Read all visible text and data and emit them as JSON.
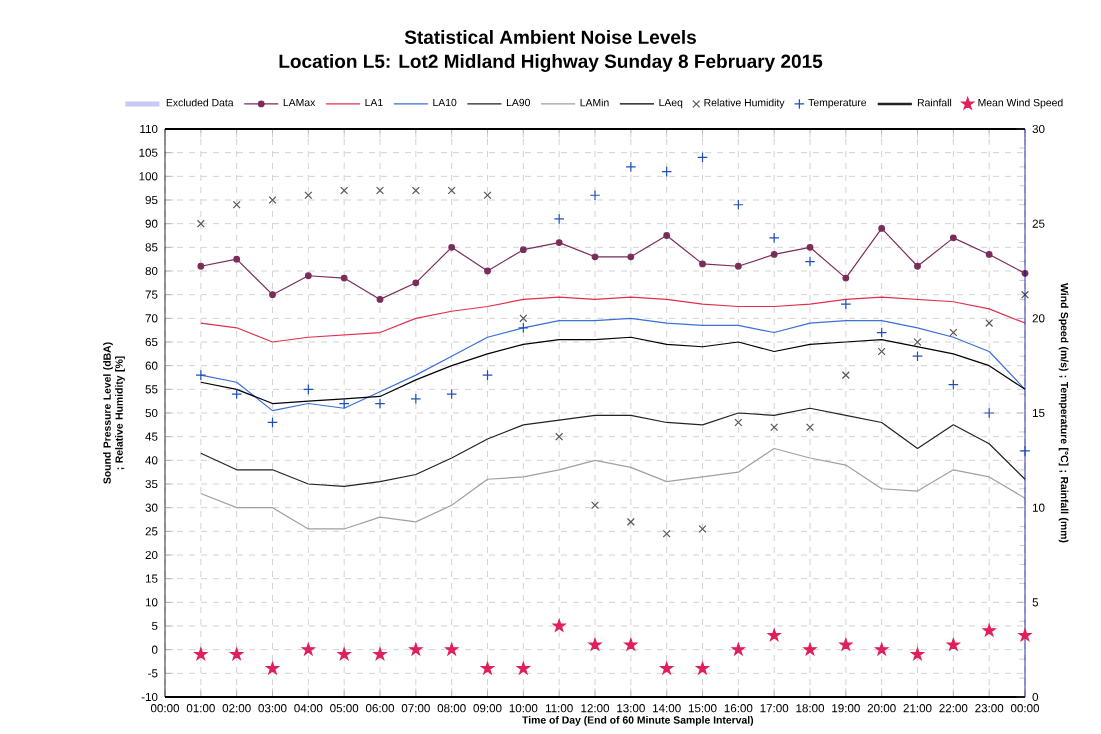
{
  "chart_data": {
    "type": "line",
    "title": "Statistical Ambient Noise Levels",
    "subtitle": "Location L5: Lot2 Midland Highway Sunday 8 February 2015",
    "xlabel": "Time of Day (End of 60 Minute Sample Interval)",
    "ylabel": "Sound Pressure Level (dBA) ; Relative Humidity [%]",
    "y2label": "Wind Speed (m/s) ; Temperature [°C] ; Rainfall (mm)",
    "categories": [
      "00:00",
      "01:00",
      "02:00",
      "03:00",
      "04:00",
      "05:00",
      "06:00",
      "07:00",
      "08:00",
      "09:00",
      "10:00",
      "11:00",
      "12:00",
      "13:00",
      "14:00",
      "15:00",
      "16:00",
      "17:00",
      "18:00",
      "19:00",
      "20:00",
      "21:00",
      "22:00",
      "23:00",
      "00:00"
    ],
    "ylim": [
      -10,
      110
    ],
    "yticks": [
      -10,
      -5,
      0,
      5,
      10,
      15,
      20,
      25,
      30,
      35,
      40,
      45,
      50,
      55,
      60,
      65,
      70,
      75,
      80,
      85,
      90,
      95,
      100,
      105,
      110
    ],
    "y2lim": [
      0,
      30
    ],
    "y2ticks": [
      0,
      5,
      10,
      15,
      20,
      25,
      30
    ],
    "grid": true,
    "legend": "top",
    "series": [
      {
        "name": "Excluded Data",
        "type": "area",
        "color": "#c8c8f0",
        "values": [
          null,
          null,
          null,
          null,
          null,
          null,
          null,
          null,
          null,
          null,
          null,
          null,
          null,
          null,
          null,
          null,
          null,
          null,
          null,
          null,
          null,
          null,
          null,
          null,
          null
        ]
      },
      {
        "name": "LAMax",
        "marker": "circle",
        "color": "#7a2d5a",
        "values": [
          null,
          81,
          82.5,
          75,
          79,
          78.5,
          74,
          77.5,
          85,
          80,
          84.5,
          86,
          83,
          83,
          87.5,
          81.5,
          81,
          83.5,
          85,
          78.5,
          89,
          81,
          87,
          83.5,
          79.5
        ]
      },
      {
        "name": "LA1",
        "color": "#e0304a",
        "values": [
          null,
          69,
          68,
          65,
          66,
          66.5,
          67,
          70,
          71.5,
          72.5,
          74,
          74.5,
          74,
          74.5,
          74,
          73,
          72.5,
          72.5,
          73,
          74,
          74.5,
          74,
          73.5,
          72,
          69
        ]
      },
      {
        "name": "LA10",
        "color": "#3a6fd8",
        "values": [
          null,
          58,
          56.5,
          50.5,
          52,
          51,
          54.5,
          58,
          62,
          66,
          68,
          69.5,
          69.5,
          70,
          69,
          68.5,
          68.5,
          67,
          69,
          69.5,
          69.5,
          68,
          66,
          63,
          55
        ]
      },
      {
        "name": "LA90",
        "color": "#222222",
        "values": [
          null,
          41.5,
          38,
          38,
          35,
          34.5,
          35.5,
          37,
          40.5,
          44.5,
          47.5,
          48.5,
          49.5,
          49.5,
          48,
          47.5,
          50,
          49.5,
          51,
          49.5,
          48,
          42.5,
          47.5,
          43.5,
          36
        ]
      },
      {
        "name": "LAMin",
        "color": "#a0a0a0",
        "values": [
          null,
          33,
          30,
          30,
          25.5,
          25.5,
          28,
          27,
          30.5,
          36,
          36.5,
          38,
          40,
          38.5,
          35.5,
          36.5,
          37.5,
          42.5,
          40.5,
          39,
          34,
          33.5,
          38,
          36.5,
          32
        ]
      },
      {
        "name": "LAeq",
        "color": "#000000",
        "values": [
          null,
          56.5,
          55,
          52,
          52.5,
          53,
          53.5,
          57,
          60,
          62.5,
          64.5,
          65.5,
          65.5,
          66,
          64.5,
          64,
          65,
          63,
          64.5,
          65,
          65.5,
          64,
          62.5,
          60,
          55
        ]
      },
      {
        "name": "Relative Humidity",
        "type": "scatter",
        "marker": "cross",
        "color": "#555555",
        "values": [
          null,
          90,
          94,
          95,
          96,
          97,
          97,
          97,
          97,
          96,
          70,
          45,
          30.5,
          27,
          24.5,
          25.5,
          48,
          47,
          47,
          58,
          63,
          65,
          67,
          69,
          75
        ]
      },
      {
        "name": "Temperature",
        "type": "scatter",
        "marker": "plus",
        "axis": "y2",
        "color": "#1f4fbf",
        "values": [
          null,
          17,
          16,
          14.5,
          16.25,
          15.5,
          15.5,
          15.75,
          16,
          17,
          19.5,
          25.25,
          26.5,
          28,
          27.75,
          28.5,
          26,
          24.25,
          23,
          20.75,
          19.25,
          18,
          16.5,
          15,
          13
        ]
      },
      {
        "name": "Rainfall",
        "type": "line",
        "axis": "y2",
        "color": "#222222",
        "values": [
          null,
          null,
          null,
          null,
          null,
          null,
          null,
          null,
          null,
          null,
          null,
          null,
          null,
          null,
          null,
          null,
          null,
          null,
          null,
          null,
          null,
          null,
          null,
          null,
          null
        ]
      },
      {
        "name": "Mean Wind Speed",
        "type": "scatter",
        "marker": "star",
        "axis": "y2",
        "color": "#e0205a",
        "values": [
          null,
          2.25,
          2.25,
          1.5,
          2.5,
          2.25,
          2.25,
          2.5,
          2.5,
          1.5,
          1.5,
          3.75,
          2.75,
          2.75,
          1.5,
          1.5,
          2.5,
          3.25,
          2.5,
          2.75,
          2.5,
          2.25,
          2.75,
          3.5,
          3.25
        ]
      }
    ]
  }
}
